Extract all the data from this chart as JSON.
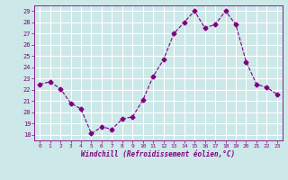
{
  "x": [
    0,
    1,
    2,
    3,
    4,
    5,
    6,
    7,
    8,
    9,
    10,
    11,
    12,
    13,
    14,
    15,
    16,
    17,
    18,
    19,
    20,
    21,
    22,
    23
  ],
  "y": [
    22.5,
    22.7,
    22.1,
    20.8,
    20.3,
    18.1,
    18.7,
    18.5,
    19.4,
    19.6,
    21.1,
    23.2,
    24.7,
    27.0,
    28.0,
    29.0,
    27.5,
    27.8,
    29.0,
    27.8,
    24.5,
    22.5,
    22.2,
    21.6
  ],
  "line_color": "#800080",
  "marker": "D",
  "marker_size": 2.5,
  "bg_color": "#cce8e8",
  "grid_color": "#ffffff",
  "xlabel": "Windchill (Refroidissement éolien,°C)",
  "ylabel": "",
  "ylim_min": 17.5,
  "ylim_max": 29.5,
  "xlim_min": -0.5,
  "xlim_max": 23.5,
  "yticks": [
    18,
    19,
    20,
    21,
    22,
    23,
    24,
    25,
    26,
    27,
    28,
    29
  ],
  "xticks": [
    0,
    1,
    2,
    3,
    4,
    5,
    6,
    7,
    8,
    9,
    10,
    11,
    12,
    13,
    14,
    15,
    16,
    17,
    18,
    19,
    20,
    21,
    22,
    23
  ],
  "axis_color": "#800080",
  "tick_color": "#800080"
}
